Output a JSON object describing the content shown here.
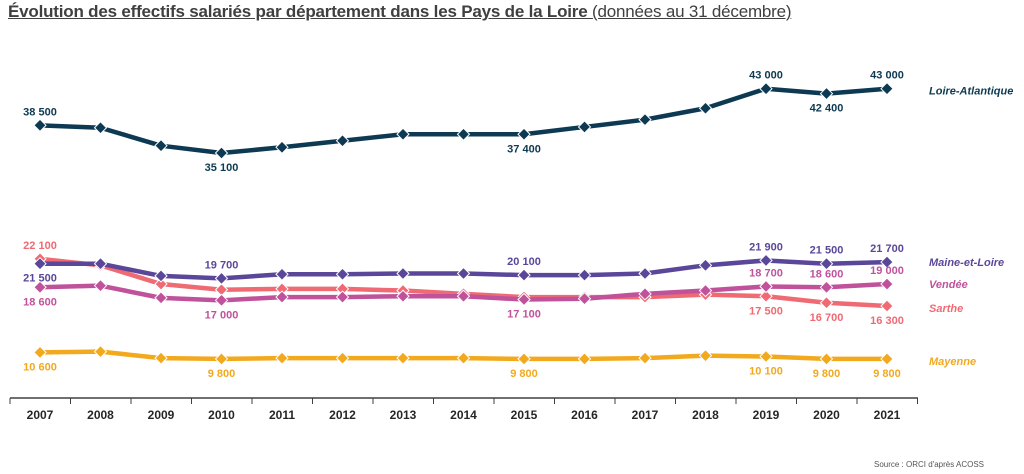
{
  "title": {
    "main": "Évolution des effectifs salariés par département dans les Pays de la Loire",
    "sub": " (données au 31 décembre)"
  },
  "source": "Source : ORCI d'après ACOSS",
  "chart_data": {
    "type": "line",
    "title": "Évolution des effectifs salariés par département dans les Pays de la Loire (données au 31 décembre)",
    "categories": [
      "2007",
      "2008",
      "2009",
      "2010",
      "2011",
      "2012",
      "2013",
      "2014",
      "2015",
      "2016",
      "2017",
      "2018",
      "2019",
      "2020",
      "2021"
    ],
    "ylim": [
      5000,
      48000
    ],
    "grid": false,
    "legend": "right-end labels",
    "series": [
      {
        "name": "Loire-Atlantique",
        "color": "#0d3a52",
        "values": [
          38500,
          38200,
          36000,
          35100,
          35800,
          36600,
          37400,
          37400,
          37400,
          38300,
          39200,
          40600,
          43000,
          42400,
          43000
        ],
        "labels": [
          {
            "i": 0,
            "text": "38 500",
            "pos": "above"
          },
          {
            "i": 3,
            "text": "35 100",
            "pos": "below"
          },
          {
            "i": 8,
            "text": "37 400",
            "pos": "below"
          },
          {
            "i": 12,
            "text": "43 000",
            "pos": "above"
          },
          {
            "i": 13,
            "text": "42 400",
            "pos": "below"
          },
          {
            "i": 14,
            "text": "43 000",
            "pos": "above"
          }
        ]
      },
      {
        "name": "Maine-et-Loire",
        "color": "#5a4799",
        "values": [
          21500,
          21500,
          20000,
          19700,
          20200,
          20200,
          20300,
          20300,
          20100,
          20100,
          20300,
          21300,
          21900,
          21500,
          21700
        ],
        "labels": [
          {
            "i": 0,
            "text": "21 500",
            "pos": "below"
          },
          {
            "i": 3,
            "text": "19 700",
            "pos": "above"
          },
          {
            "i": 8,
            "text": "20 100",
            "pos": "above"
          },
          {
            "i": 12,
            "text": "21 900",
            "pos": "above"
          },
          {
            "i": 13,
            "text": "21 500",
            "pos": "above"
          },
          {
            "i": 14,
            "text": "21 700",
            "pos": "above"
          }
        ]
      },
      {
        "name": "Vendée",
        "color": "#c0529c",
        "values": [
          18600,
          18800,
          17300,
          17000,
          17400,
          17400,
          17500,
          17500,
          17100,
          17200,
          17800,
          18200,
          18700,
          18600,
          19000
        ],
        "labels": [
          {
            "i": 0,
            "text": "18 600",
            "pos": "below"
          },
          {
            "i": 3,
            "text": "17 000",
            "pos": "below"
          },
          {
            "i": 8,
            "text": "17 100",
            "pos": "below"
          },
          {
            "i": 12,
            "text": "18 700",
            "pos": "above"
          },
          {
            "i": 13,
            "text": "18 600",
            "pos": "above"
          },
          {
            "i": 14,
            "text": "19 000",
            "pos": "above"
          }
        ]
      },
      {
        "name": "Sarthe",
        "color": "#ef6a73",
        "values": [
          22100,
          21300,
          19000,
          18300,
          18400,
          18400,
          18200,
          17800,
          17400,
          17400,
          17400,
          17700,
          17500,
          16700,
          16300
        ],
        "labels": [
          {
            "i": 0,
            "text": "22 100",
            "pos": "above"
          },
          {
            "i": 12,
            "text": "17 500",
            "pos": "below"
          },
          {
            "i": 13,
            "text": "16 700",
            "pos": "below"
          },
          {
            "i": 14,
            "text": "16 300",
            "pos": "below"
          }
        ]
      },
      {
        "name": "Mayenne",
        "color": "#f2a91e",
        "values": [
          10600,
          10700,
          9900,
          9800,
          9900,
          9900,
          9900,
          9900,
          9800,
          9800,
          9900,
          10200,
          10100,
          9800,
          9800
        ],
        "labels": [
          {
            "i": 0,
            "text": "10 600",
            "pos": "below"
          },
          {
            "i": 3,
            "text": "9 800",
            "pos": "below"
          },
          {
            "i": 8,
            "text": "9 800",
            "pos": "below"
          },
          {
            "i": 12,
            "text": "10 100",
            "pos": "below"
          },
          {
            "i": 13,
            "text": "9 800",
            "pos": "below"
          },
          {
            "i": 14,
            "text": "9 800",
            "pos": "below"
          }
        ]
      }
    ]
  }
}
